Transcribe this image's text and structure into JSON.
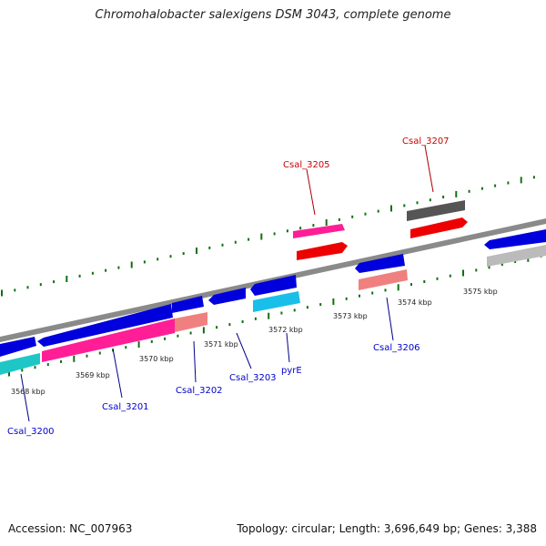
{
  "title": "Chromohalobacter salexigens DSM 3043, complete genome",
  "footer": {
    "accession": "Accession: NC_007963",
    "topology": "Topology: circular; Length: 3,696,649 bp; Genes: 3,388"
  },
  "scale_unit": "kbp",
  "scale_labels": [
    "3568 kbp",
    "3569 kbp",
    "3570 kbp",
    "3571 kbp",
    "3572 kbp",
    "3573 kbp",
    "3574 kbp",
    "3575 kbp"
  ],
  "gene_labels": [
    "Csal_3200",
    "Csal_3201",
    "Csal_3202",
    "Csal_3203",
    "pyrE",
    "Csal_3205",
    "Csal_3206",
    "Csal_3207"
  ],
  "colors": {
    "label_blue": "#0000cc",
    "label_red": "#cc0000",
    "tick_green": "#107010",
    "backbone": "#8a8a8a"
  }
}
